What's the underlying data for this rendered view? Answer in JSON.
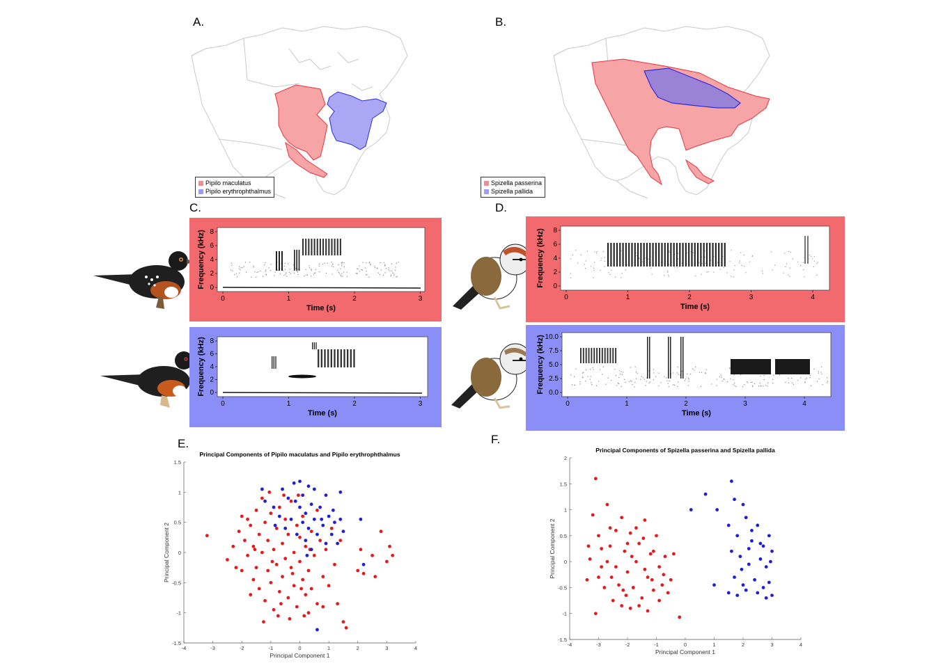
{
  "colors": {
    "red": "#e41a1c",
    "blue": "#1f1fd6",
    "frame_red": "#f26a6e",
    "frame_blue": "#8c8ef8",
    "range_red": "#f5a3a6",
    "range_blue": "#a9a8f4"
  },
  "panels": {
    "A": {
      "label": "A.",
      "legend": [
        {
          "name": "Pipilo maculatus",
          "color": "#f28d8f"
        },
        {
          "name": "Pipilo erythrophthalmus",
          "color": "#9b9cf5"
        }
      ]
    },
    "B": {
      "label": "B.",
      "legend": [
        {
          "name": "Spizella passerina",
          "color": "#f28d8f"
        },
        {
          "name": "Spizella pallida",
          "color": "#9b9cf5"
        }
      ]
    },
    "C": {
      "label": "C.",
      "top": {
        "ylabel": "Frequency (kHz)",
        "xlabel": "Time (s)",
        "yticks": [
          "0",
          "2",
          "4",
          "6",
          "8"
        ],
        "xticks": [
          "0",
          "1",
          "2",
          "3"
        ]
      },
      "bottom": {
        "ylabel": "Frequency (kHz)",
        "xlabel": "Time (s)",
        "yticks": [
          "0",
          "2",
          "4",
          "6",
          "8"
        ],
        "xticks": [
          "0",
          "1",
          "2",
          "3"
        ]
      }
    },
    "D": {
      "label": "D.",
      "top": {
        "ylabel": "Frequency (kHz)",
        "xlabel": "Time (s)",
        "yticks": [
          "0",
          "2",
          "4",
          "6",
          "8"
        ],
        "xticks": [
          "0",
          "1",
          "2",
          "3",
          "4"
        ]
      },
      "bottom": {
        "ylabel": "Frequency (kHz)",
        "xlabel": "Time (s)",
        "yticks": [
          "0.0",
          "2.5",
          "5.0",
          "7.5",
          "10.0"
        ],
        "xticks": [
          "0",
          "1",
          "2",
          "3",
          "4"
        ]
      }
    },
    "E": {
      "label": "E."
    },
    "F": {
      "label": "F."
    }
  },
  "chart_data": [
    {
      "type": "scatter",
      "panel": "E",
      "title": "Principal Components of Pipilo maculatus and Pipilo erythrophthalmus",
      "xlabel": "Principal Component 1",
      "ylabel": "Principal Component 2",
      "xlim": [
        -4,
        4
      ],
      "ylim": [
        -1.5,
        1.5
      ],
      "xticks": [
        "-4",
        "-3",
        "-2",
        "-1",
        "0",
        "1",
        "2",
        "3",
        "4"
      ],
      "yticks": [
        "-1.5",
        "-1",
        "-0.5",
        "0",
        "0.5",
        "1",
        "1.5"
      ],
      "series": [
        {
          "color": "#e41a1c",
          "points": [
            [
              -3.2,
              0.28
            ],
            [
              -2.5,
              -0.12
            ],
            [
              -2.3,
              0.1
            ],
            [
              -2.1,
              0.35
            ],
            [
              -2.0,
              -0.3
            ],
            [
              -1.9,
              0.2
            ],
            [
              -1.8,
              0.55
            ],
            [
              -1.8,
              -0.05
            ],
            [
              -1.7,
              0.45
            ],
            [
              -1.6,
              -0.45
            ],
            [
              -1.6,
              0.1
            ],
            [
              -1.5,
              0.7
            ],
            [
              -1.5,
              -0.25
            ],
            [
              -1.4,
              0.3
            ],
            [
              -1.4,
              -0.6
            ],
            [
              -1.3,
              0.9
            ],
            [
              -1.3,
              0.0
            ],
            [
              -1.2,
              -0.8
            ],
            [
              -1.2,
              0.5
            ],
            [
              -1.1,
              -0.3
            ],
            [
              -1.1,
              0.2
            ],
            [
              -1.0,
              0.65
            ],
            [
              -1.0,
              -0.5
            ],
            [
              -0.9,
              0.05
            ],
            [
              -0.9,
              -0.95
            ],
            [
              -0.8,
              0.4
            ],
            [
              -0.8,
              -0.2
            ],
            [
              -0.7,
              0.75
            ],
            [
              -0.7,
              -0.65
            ],
            [
              -0.6,
              0.15
            ],
            [
              -0.6,
              -0.4
            ],
            [
              -0.5,
              0.55
            ],
            [
              -0.5,
              -0.1
            ],
            [
              -0.4,
              -0.75
            ],
            [
              -0.4,
              0.3
            ],
            [
              -0.3,
              -0.25
            ],
            [
              -0.3,
              0.85
            ],
            [
              -0.2,
              0.0
            ],
            [
              -0.2,
              -0.55
            ],
            [
              -0.1,
              0.45
            ],
            [
              -0.1,
              -0.9
            ],
            [
              0.0,
              -0.15
            ],
            [
              0.0,
              0.25
            ],
            [
              0.1,
              -0.45
            ],
            [
              0.1,
              0.6
            ],
            [
              0.2,
              -0.7
            ],
            [
              0.2,
              0.1
            ],
            [
              0.3,
              -0.3
            ],
            [
              0.3,
              -1.0
            ],
            [
              0.4,
              0.35
            ],
            [
              0.4,
              -0.6
            ],
            [
              0.5,
              -0.05
            ],
            [
              0.6,
              -0.85
            ],
            [
              0.7,
              0.2
            ],
            [
              0.8,
              -0.4
            ],
            [
              0.9,
              0.05
            ],
            [
              1.0,
              -0.55
            ],
            [
              1.2,
              -0.2
            ],
            [
              1.3,
              -0.85
            ],
            [
              1.5,
              -1.15
            ],
            [
              1.6,
              -1.25
            ],
            [
              1.4,
              0.2
            ],
            [
              2.0,
              -0.3
            ],
            [
              2.1,
              0.05
            ],
            [
              2.2,
              -0.35
            ],
            [
              2.5,
              -0.05
            ],
            [
              2.6,
              -0.4
            ],
            [
              2.8,
              0.35
            ],
            [
              3.0,
              -0.15
            ],
            [
              3.1,
              0.1
            ],
            [
              3.2,
              -0.05
            ],
            [
              -1.7,
              -0.7
            ],
            [
              -1.25,
              -1.15
            ],
            [
              -0.75,
              -1.05
            ],
            [
              -0.35,
              -1.1
            ],
            [
              0.15,
              -1.05
            ],
            [
              -2.2,
              -0.25
            ],
            [
              -0.05,
              0.95
            ],
            [
              -0.55,
              0.95
            ],
            [
              -1.05,
              1.0
            ],
            [
              -2.0,
              0.6
            ],
            [
              0.6,
              0.7
            ],
            [
              -1.55,
              0.05
            ],
            [
              -0.95,
              -0.15
            ],
            [
              -0.25,
              -0.35
            ],
            [
              0.35,
              0.05
            ],
            [
              0.05,
              -0.6
            ],
            [
              -0.65,
              -0.85
            ],
            [
              1.1,
              0.4
            ],
            [
              0.8,
              -0.9
            ]
          ]
        },
        {
          "color": "#1f1fd6",
          "points": [
            [
              -1.3,
              1.05
            ],
            [
              -1.2,
              0.85
            ],
            [
              -0.9,
              0.75
            ],
            [
              -0.7,
              0.6
            ],
            [
              -0.6,
              1.05
            ],
            [
              -0.5,
              0.4
            ],
            [
              -0.4,
              0.9
            ],
            [
              -0.3,
              0.55
            ],
            [
              -0.2,
              1.15
            ],
            [
              -0.1,
              0.3
            ],
            [
              0.0,
              0.75
            ],
            [
              0.0,
              1.18
            ],
            [
              0.1,
              0.5
            ],
            [
              0.1,
              0.95
            ],
            [
              0.2,
              0.2
            ],
            [
              0.2,
              0.65
            ],
            [
              0.3,
              1.1
            ],
            [
              0.3,
              0.4
            ],
            [
              0.4,
              0.8
            ],
            [
              0.4,
              0.05
            ],
            [
              0.5,
              0.55
            ],
            [
              0.5,
              1.05
            ],
            [
              0.6,
              0.3
            ],
            [
              0.7,
              0.75
            ],
            [
              0.8,
              0.45
            ],
            [
              0.9,
              0.15
            ],
            [
              0.9,
              0.95
            ],
            [
              1.0,
              0.6
            ],
            [
              1.1,
              0.3
            ],
            [
              1.2,
              0.5
            ],
            [
              1.3,
              0.15
            ],
            [
              1.4,
              1.0
            ],
            [
              1.5,
              0.35
            ],
            [
              1.4,
              0.55
            ],
            [
              2.1,
              0.55
            ],
            [
              2.2,
              -0.2
            ],
            [
              0.6,
              -1.28
            ],
            [
              0.25,
              -0.05
            ],
            [
              -0.15,
              0.85
            ],
            [
              0.75,
              0.55
            ],
            [
              1.15,
              0.7
            ],
            [
              -0.85,
              0.45
            ]
          ]
        }
      ]
    },
    {
      "type": "scatter",
      "panel": "F",
      "title": "Principal Components of Spizella passerina and Spizella pallida",
      "xlabel": "Principal Component 1",
      "ylabel": "Principal Component 2",
      "xlim": [
        -4,
        4
      ],
      "ylim": [
        -1.5,
        2
      ],
      "xticks": [
        "-4",
        "-3",
        "-2",
        "-1",
        "0",
        "1",
        "2",
        "3",
        "4"
      ],
      "yticks": [
        "-1.5",
        "-1",
        "-0.5",
        "0",
        "0.5",
        "1",
        "1.5",
        "2"
      ],
      "series": [
        {
          "color": "#e41a1c",
          "points": [
            [
              -3.1,
              1.6
            ],
            [
              -3.2,
              0.9
            ],
            [
              -2.7,
              1.1
            ],
            [
              -3.0,
              0.5
            ],
            [
              -3.3,
              0.05
            ],
            [
              -3.4,
              -0.35
            ],
            [
              -2.9,
              -0.1
            ],
            [
              -2.6,
              0.3
            ],
            [
              -2.4,
              0.6
            ],
            [
              -2.2,
              0.85
            ],
            [
              -2.1,
              0.2
            ],
            [
              -2.0,
              -0.2
            ],
            [
              -1.9,
              0.55
            ],
            [
              -1.8,
              -0.5
            ],
            [
              -1.7,
              0.0
            ],
            [
              -1.6,
              0.35
            ],
            [
              -1.5,
              -0.7
            ],
            [
              -1.4,
              0.8
            ],
            [
              -1.3,
              -0.3
            ],
            [
              -1.2,
              0.15
            ],
            [
              -1.1,
              -0.55
            ],
            [
              -1.0,
              0.5
            ],
            [
              -0.9,
              -0.1
            ],
            [
              -0.8,
              -0.45
            ],
            [
              -0.7,
              0.1
            ],
            [
              -0.6,
              -0.6
            ],
            [
              -0.5,
              -0.35
            ],
            [
              -0.4,
              0.15
            ],
            [
              -2.8,
              -0.5
            ],
            [
              -2.5,
              -0.75
            ],
            [
              -2.3,
              -0.45
            ],
            [
              -2.2,
              -0.85
            ],
            [
              -1.9,
              -0.9
            ],
            [
              -1.6,
              -0.85
            ],
            [
              -1.3,
              -0.95
            ],
            [
              -3.1,
              -1.0
            ],
            [
              -3.0,
              -0.3
            ],
            [
              -2.7,
              0.0
            ],
            [
              -2.4,
              -0.1
            ],
            [
              -2.0,
              0.35
            ],
            [
              -1.7,
              0.65
            ],
            [
              -1.4,
              -0.15
            ],
            [
              -1.1,
              0.2
            ],
            [
              -0.9,
              -0.75
            ],
            [
              -2.6,
              0.65
            ],
            [
              -0.2,
              -1.07
            ],
            [
              -2.9,
              0.25
            ],
            [
              -2.15,
              -0.55
            ],
            [
              -1.85,
              0.1
            ],
            [
              -1.45,
              0.45
            ],
            [
              -1.15,
              -0.35
            ],
            [
              -0.75,
              -0.25
            ],
            [
              -3.35,
              0.3
            ],
            [
              -2.55,
              -0.3
            ],
            [
              -2.05,
              -0.65
            ]
          ]
        },
        {
          "color": "#1f1fd6",
          "points": [
            [
              0.2,
              1.0
            ],
            [
              0.7,
              1.3
            ],
            [
              1.1,
              1.0
            ],
            [
              1.6,
              1.55
            ],
            [
              1.7,
              1.2
            ],
            [
              2.0,
              1.1
            ],
            [
              2.1,
              0.85
            ],
            [
              1.5,
              0.7
            ],
            [
              1.8,
              0.5
            ],
            [
              2.3,
              0.4
            ],
            [
              2.5,
              0.7
            ],
            [
              2.7,
              0.3
            ],
            [
              2.9,
              0.5
            ],
            [
              1.6,
              0.2
            ],
            [
              1.9,
              0.1
            ],
            [
              2.2,
              -0.05
            ],
            [
              2.6,
              0.05
            ],
            [
              2.8,
              -0.1
            ],
            [
              3.0,
              0.2
            ],
            [
              1.7,
              -0.3
            ],
            [
              2.0,
              -0.45
            ],
            [
              2.4,
              -0.35
            ],
            [
              2.7,
              -0.5
            ],
            [
              2.9,
              -0.4
            ],
            [
              3.0,
              -0.65
            ],
            [
              1.5,
              -0.6
            ],
            [
              1.8,
              -0.65
            ],
            [
              2.1,
              -0.55
            ],
            [
              2.5,
              -0.6
            ],
            [
              2.8,
              -0.7
            ],
            [
              1.0,
              -0.45
            ],
            [
              2.3,
              0.6
            ],
            [
              2.6,
              0.35
            ],
            [
              2.95,
              0.0
            ],
            [
              2.2,
              0.25
            ],
            [
              1.95,
              -0.15
            ]
          ]
        }
      ]
    }
  ]
}
